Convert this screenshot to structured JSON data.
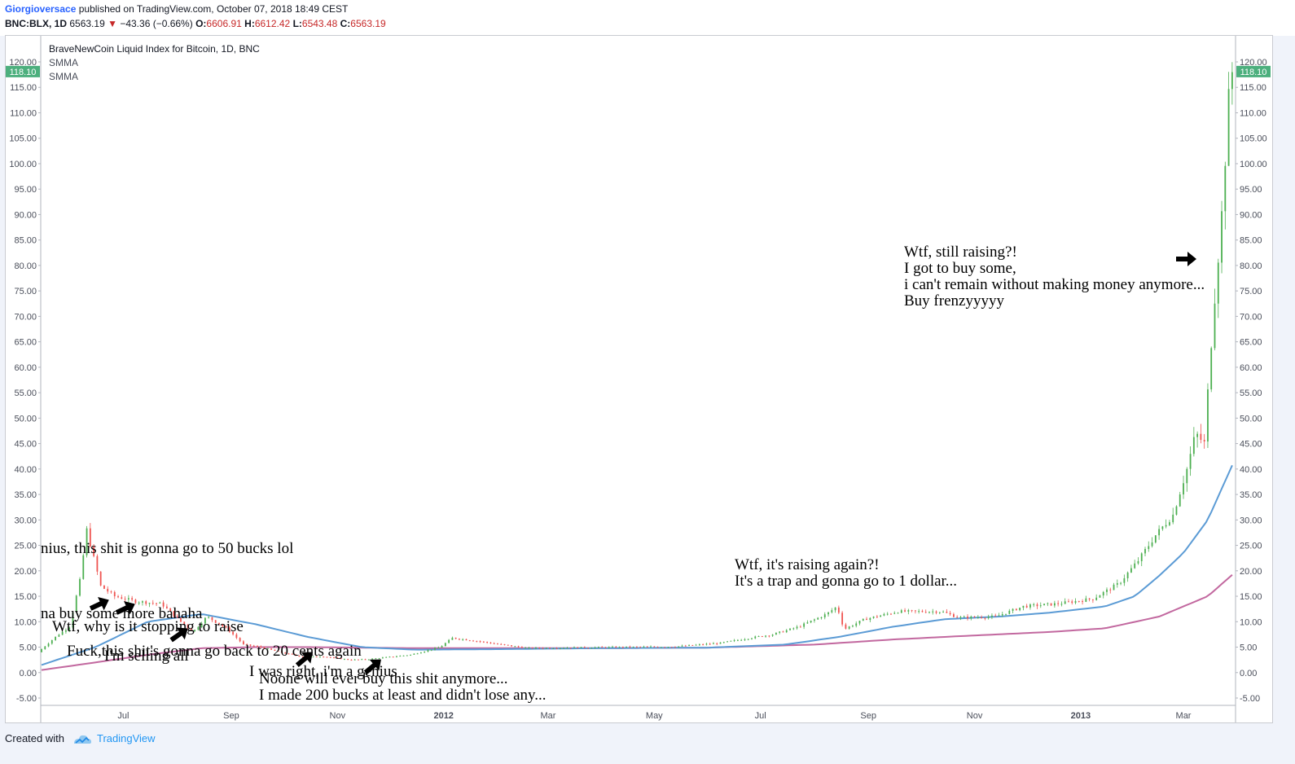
{
  "header": {
    "author": "Giorgioversace",
    "published_text": "published on TradingView.com, October 07, 2018 18:49 CEST"
  },
  "quote": {
    "symbol": "BNC:BLX, 1D",
    "last": "6563.19",
    "change": "−43.36 (−0.66%)",
    "open_label": "O:",
    "open": "6606.91",
    "high_label": "H:",
    "high": "6612.42",
    "low_label": "L:",
    "low": "6543.48",
    "close_label": "C:",
    "close": "6563.19"
  },
  "legend": {
    "title": "BraveNewCoin Liquid Index for Bitcoin, 1D, BNC",
    "indicator1": "SMMA",
    "indicator2": "SMMA"
  },
  "annotations": {
    "a1": "nius, this shit is gonna go to 50 bucks lol",
    "a2": "na buy some more bahaha",
    "a3": "Wtf, why is it stopping to raise",
    "a4": "I'm selling all",
    "a5": "Fuck,this shit's gonna go back to 20 cents again",
    "a6": "I was right, i'm a genius",
    "a7_line1": "Noone will ever buy this shit anymore...",
    "a7_line2": "I made 200 bucks at least and didn't lose any...",
    "a8_line1": "Wtf, it's raising again?!",
    "a8_line2": "It's a trap and gonna go to 1 dollar...",
    "a9_line1": "Wtf, still raising?!",
    "a9_line2": "I got to buy some,",
    "a9_line3": "i can't remain without making money anymore...",
    "a9_line4": "Buy frenzyyyyy"
  },
  "footer": {
    "created_with": "Created with",
    "brand": "TradingView"
  },
  "colors": {
    "up": "#26a69a",
    "up_candle": "#4caf50",
    "down": "#ef5350",
    "smma_fast": "#5b9bd5",
    "smma_slow": "#c2689f",
    "price_badge": "#4caf7d"
  },
  "chart_data": {
    "type": "line",
    "title": "BraveNewCoin Liquid Index for Bitcoin, 1D, BNC",
    "y_axis": {
      "ylim": [
        -7,
        123
      ],
      "ticks": [
        "-5.00",
        "0.00",
        "5.00",
        "10.00",
        "15.00",
        "20.00",
        "25.00",
        "30.00",
        "35.00",
        "40.00",
        "45.00",
        "50.00",
        "55.00",
        "60.00",
        "65.00",
        "70.00",
        "75.00",
        "80.00",
        "85.00",
        "90.00",
        "95.00",
        "100.00",
        "105.00",
        "110.00",
        "115.00",
        "120.00"
      ],
      "last_price_label": "118.10",
      "last_price": 118.1
    },
    "x_axis": {
      "start": "2011-05-15",
      "end": "2013-03-30",
      "ticks": [
        {
          "label": "Jul",
          "date": "2011-07-01",
          "bold": false
        },
        {
          "label": "Sep",
          "date": "2011-09-01",
          "bold": false
        },
        {
          "label": "Nov",
          "date": "2011-11-01",
          "bold": false
        },
        {
          "label": "2012",
          "date": "2012-01-01",
          "bold": true
        },
        {
          "label": "Mar",
          "date": "2012-03-01",
          "bold": false
        },
        {
          "label": "May",
          "date": "2012-05-01",
          "bold": false
        },
        {
          "label": "Jul",
          "date": "2012-07-01",
          "bold": false
        },
        {
          "label": "Sep",
          "date": "2012-09-01",
          "bold": false
        },
        {
          "label": "Nov",
          "date": "2012-11-01",
          "bold": false
        },
        {
          "label": "2013",
          "date": "2013-01-01",
          "bold": true
        },
        {
          "label": "Mar",
          "date": "2013-03-01",
          "bold": false
        }
      ]
    },
    "series": [
      {
        "name": "price",
        "x": [
          "2011-05-15",
          "2011-05-25",
          "2011-06-02",
          "2011-06-08",
          "2011-06-12",
          "2011-06-20",
          "2011-06-28",
          "2011-07-10",
          "2011-07-25",
          "2011-08-05",
          "2011-08-12",
          "2011-08-20",
          "2011-09-01",
          "2011-09-10",
          "2011-09-20",
          "2011-10-01",
          "2011-10-15",
          "2011-10-25",
          "2011-11-10",
          "2011-11-20",
          "2011-12-01",
          "2011-12-15",
          "2012-01-01",
          "2012-01-08",
          "2012-01-20",
          "2012-02-05",
          "2012-02-20",
          "2012-03-15",
          "2012-04-15",
          "2012-05-15",
          "2012-06-10",
          "2012-06-25",
          "2012-07-10",
          "2012-07-25",
          "2012-08-10",
          "2012-08-16",
          "2012-08-20",
          "2012-09-01",
          "2012-09-20",
          "2012-10-15",
          "2012-10-25",
          "2012-11-15",
          "2012-12-01",
          "2012-12-20",
          "2013-01-10",
          "2013-01-25",
          "2013-02-05",
          "2013-02-15",
          "2013-02-25",
          "2013-03-05",
          "2013-03-10",
          "2013-03-15",
          "2013-03-20",
          "2013-03-25",
          "2013-03-30"
        ],
        "y": [
          4.0,
          7.0,
          9.0,
          18.0,
          28.0,
          17.0,
          15.0,
          14.0,
          13.5,
          10.0,
          8.0,
          11.0,
          8.5,
          5.5,
          5.0,
          4.0,
          3.0,
          3.2,
          2.5,
          2.6,
          3.0,
          3.5,
          5.0,
          6.8,
          6.3,
          5.5,
          4.8,
          4.9,
          5.0,
          5.1,
          5.8,
          6.7,
          7.5,
          9.0,
          11.5,
          13.0,
          8.5,
          10.5,
          12.0,
          12.0,
          10.8,
          11.0,
          13.0,
          13.5,
          14.5,
          17.5,
          22.0,
          27.0,
          31.0,
          40.0,
          47.0,
          45.0,
          70.0,
          90.0,
          118.1
        ]
      },
      {
        "name": "SMMA",
        "x": [
          "2011-05-15",
          "2011-06-15",
          "2011-07-15",
          "2011-08-15",
          "2011-09-15",
          "2011-10-15",
          "2011-11-15",
          "2011-12-15",
          "2012-02-01",
          "2012-04-01",
          "2012-06-01",
          "2012-07-15",
          "2012-08-15",
          "2012-09-15",
          "2012-10-15",
          "2012-11-15",
          "2012-12-15",
          "2013-01-15",
          "2013-02-01",
          "2013-02-15",
          "2013-03-01",
          "2013-03-15",
          "2013-03-30"
        ],
        "y": [
          1.5,
          5.0,
          10.0,
          11.5,
          9.5,
          7.0,
          5.0,
          4.5,
          4.6,
          4.8,
          4.9,
          5.5,
          7.0,
          9.0,
          10.5,
          11.0,
          11.8,
          13.0,
          15.0,
          19.0,
          23.5,
          30.0,
          41.5
        ]
      },
      {
        "name": "SMMA",
        "x": [
          "2011-05-15",
          "2011-06-15",
          "2011-07-15",
          "2011-08-15",
          "2011-09-15",
          "2011-10-15",
          "2011-11-15",
          "2011-12-15",
          "2012-02-01",
          "2012-04-01",
          "2012-06-01",
          "2012-08-01",
          "2012-09-15",
          "2012-11-01",
          "2012-12-15",
          "2013-01-15",
          "2013-02-15",
          "2013-03-15",
          "2013-03-30"
        ],
        "y": [
          0.5,
          2.0,
          3.5,
          4.8,
          5.0,
          5.0,
          4.9,
          4.8,
          4.8,
          4.8,
          4.9,
          5.5,
          6.5,
          7.3,
          8.0,
          8.7,
          11.0,
          15.0,
          19.5
        ]
      }
    ],
    "grid": false,
    "legend_position": "top-left"
  }
}
